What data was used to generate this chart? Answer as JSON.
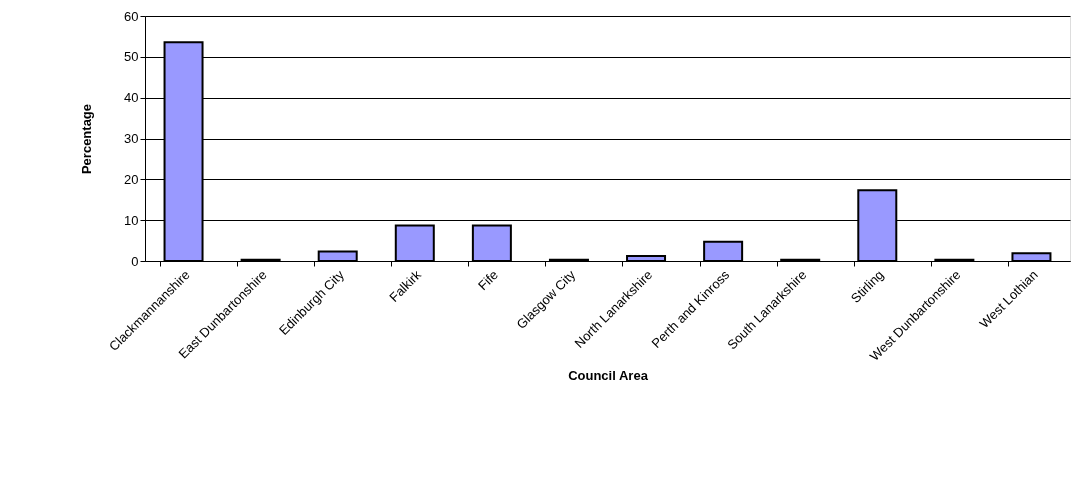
{
  "chart_data": {
    "type": "bar",
    "xlabel": "Council Area",
    "ylabel": "Percentage",
    "categories": [
      "Clackmannanshire",
      "East Dunbartonshire",
      "Edinburgh City",
      "Falkirk",
      "Fife",
      "Glasgow City",
      "North Lanarkshire",
      "Perth and Kinross",
      "South Lanarkshire",
      "Stirling",
      "West Dunbartonshire",
      "West Lothian"
    ],
    "values": [
      53.6,
      0.3,
      2.3,
      8.7,
      8.7,
      0.3,
      1.2,
      4.7,
      0.3,
      17.3,
      0.3,
      1.9
    ],
    "color": "#9999ff",
    "ylim": [
      0,
      60
    ],
    "yticks": [
      0,
      10,
      20,
      30,
      40,
      50,
      60
    ],
    "grid": "y"
  }
}
